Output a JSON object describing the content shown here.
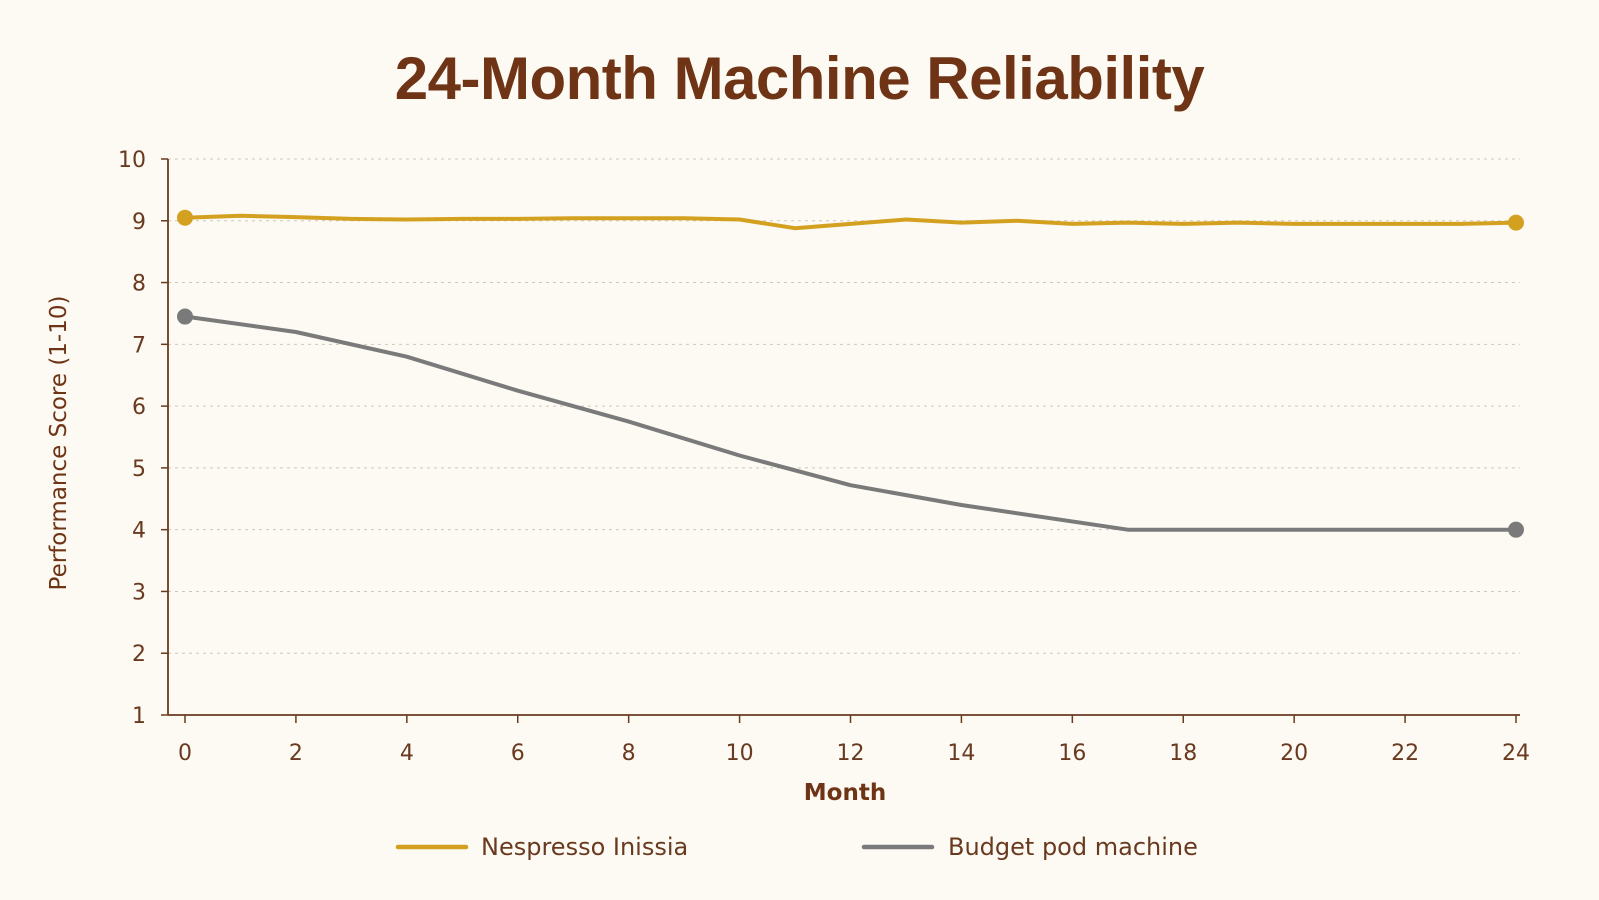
{
  "chart_data": {
    "type": "line",
    "title": "24-Month Machine Reliability",
    "xlabel": "Month",
    "ylabel": "Performance Score (1-10)",
    "xlim": [
      0,
      24
    ],
    "ylim": [
      1,
      10
    ],
    "x_ticks": [
      "0",
      "2",
      "4",
      "6",
      "8",
      "10",
      "12",
      "14",
      "16",
      "18",
      "20",
      "22",
      "24"
    ],
    "y_ticks": [
      "1",
      "2",
      "3",
      "4",
      "5",
      "6",
      "7",
      "8",
      "9",
      "10"
    ],
    "grid": true,
    "legend_position": "bottom",
    "series": [
      {
        "name": "Nespresso Inissia",
        "color": "#d4a020",
        "x": [
          0,
          1,
          2,
          3,
          4,
          5,
          6,
          7,
          8,
          9,
          10,
          11,
          12,
          13,
          14,
          15,
          16,
          17,
          18,
          19,
          20,
          21,
          22,
          23,
          24
        ],
        "y": [
          9.05,
          9.08,
          9.06,
          9.03,
          9.02,
          9.03,
          9.03,
          9.04,
          9.04,
          9.04,
          9.02,
          8.88,
          8.95,
          9.02,
          8.97,
          9.0,
          8.95,
          8.97,
          8.95,
          8.97,
          8.95,
          8.95,
          8.95,
          8.95,
          8.97
        ]
      },
      {
        "name": "Budget pod machine",
        "color": "#7a7a7a",
        "x": [
          0,
          2,
          4,
          6,
          8,
          10,
          12,
          14,
          17,
          24
        ],
        "y": [
          7.45,
          7.2,
          6.8,
          6.25,
          5.75,
          5.2,
          4.72,
          4.4,
          4.0,
          4.0
        ]
      }
    ]
  }
}
